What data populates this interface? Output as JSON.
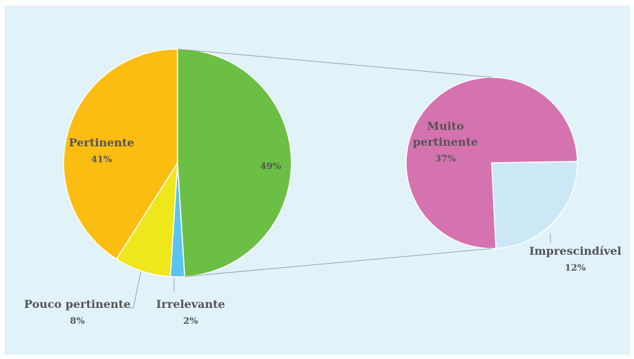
{
  "chart_data": [
    {
      "type": "pie",
      "slices": [
        {
          "label": "",
          "value": 49,
          "value_label": "49%",
          "color": "#6cbf45"
        },
        {
          "label": "Irrelevante",
          "value": 2,
          "value_label": "2%",
          "color": "#5bc3ee"
        },
        {
          "label": "Pouco pertinente",
          "value": 8,
          "value_label": "8%",
          "color": "#f0e61c"
        },
        {
          "label": "Pertinente",
          "value": 41,
          "value_label": "41%",
          "color": "#fbbd12"
        }
      ]
    },
    {
      "type": "pie",
      "slices": [
        {
          "label": "Muito pertinente",
          "value": 37,
          "value_label": "37%",
          "color": "#d573b0"
        },
        {
          "label": "Imprescindível",
          "value": 12,
          "value_label": "12%",
          "color": "#cce8f7"
        }
      ]
    }
  ],
  "colors": {
    "background": "#e1f2f9",
    "label_text": "#555555",
    "connector": "#9aa0a6",
    "slice_border": "#ffffff"
  }
}
